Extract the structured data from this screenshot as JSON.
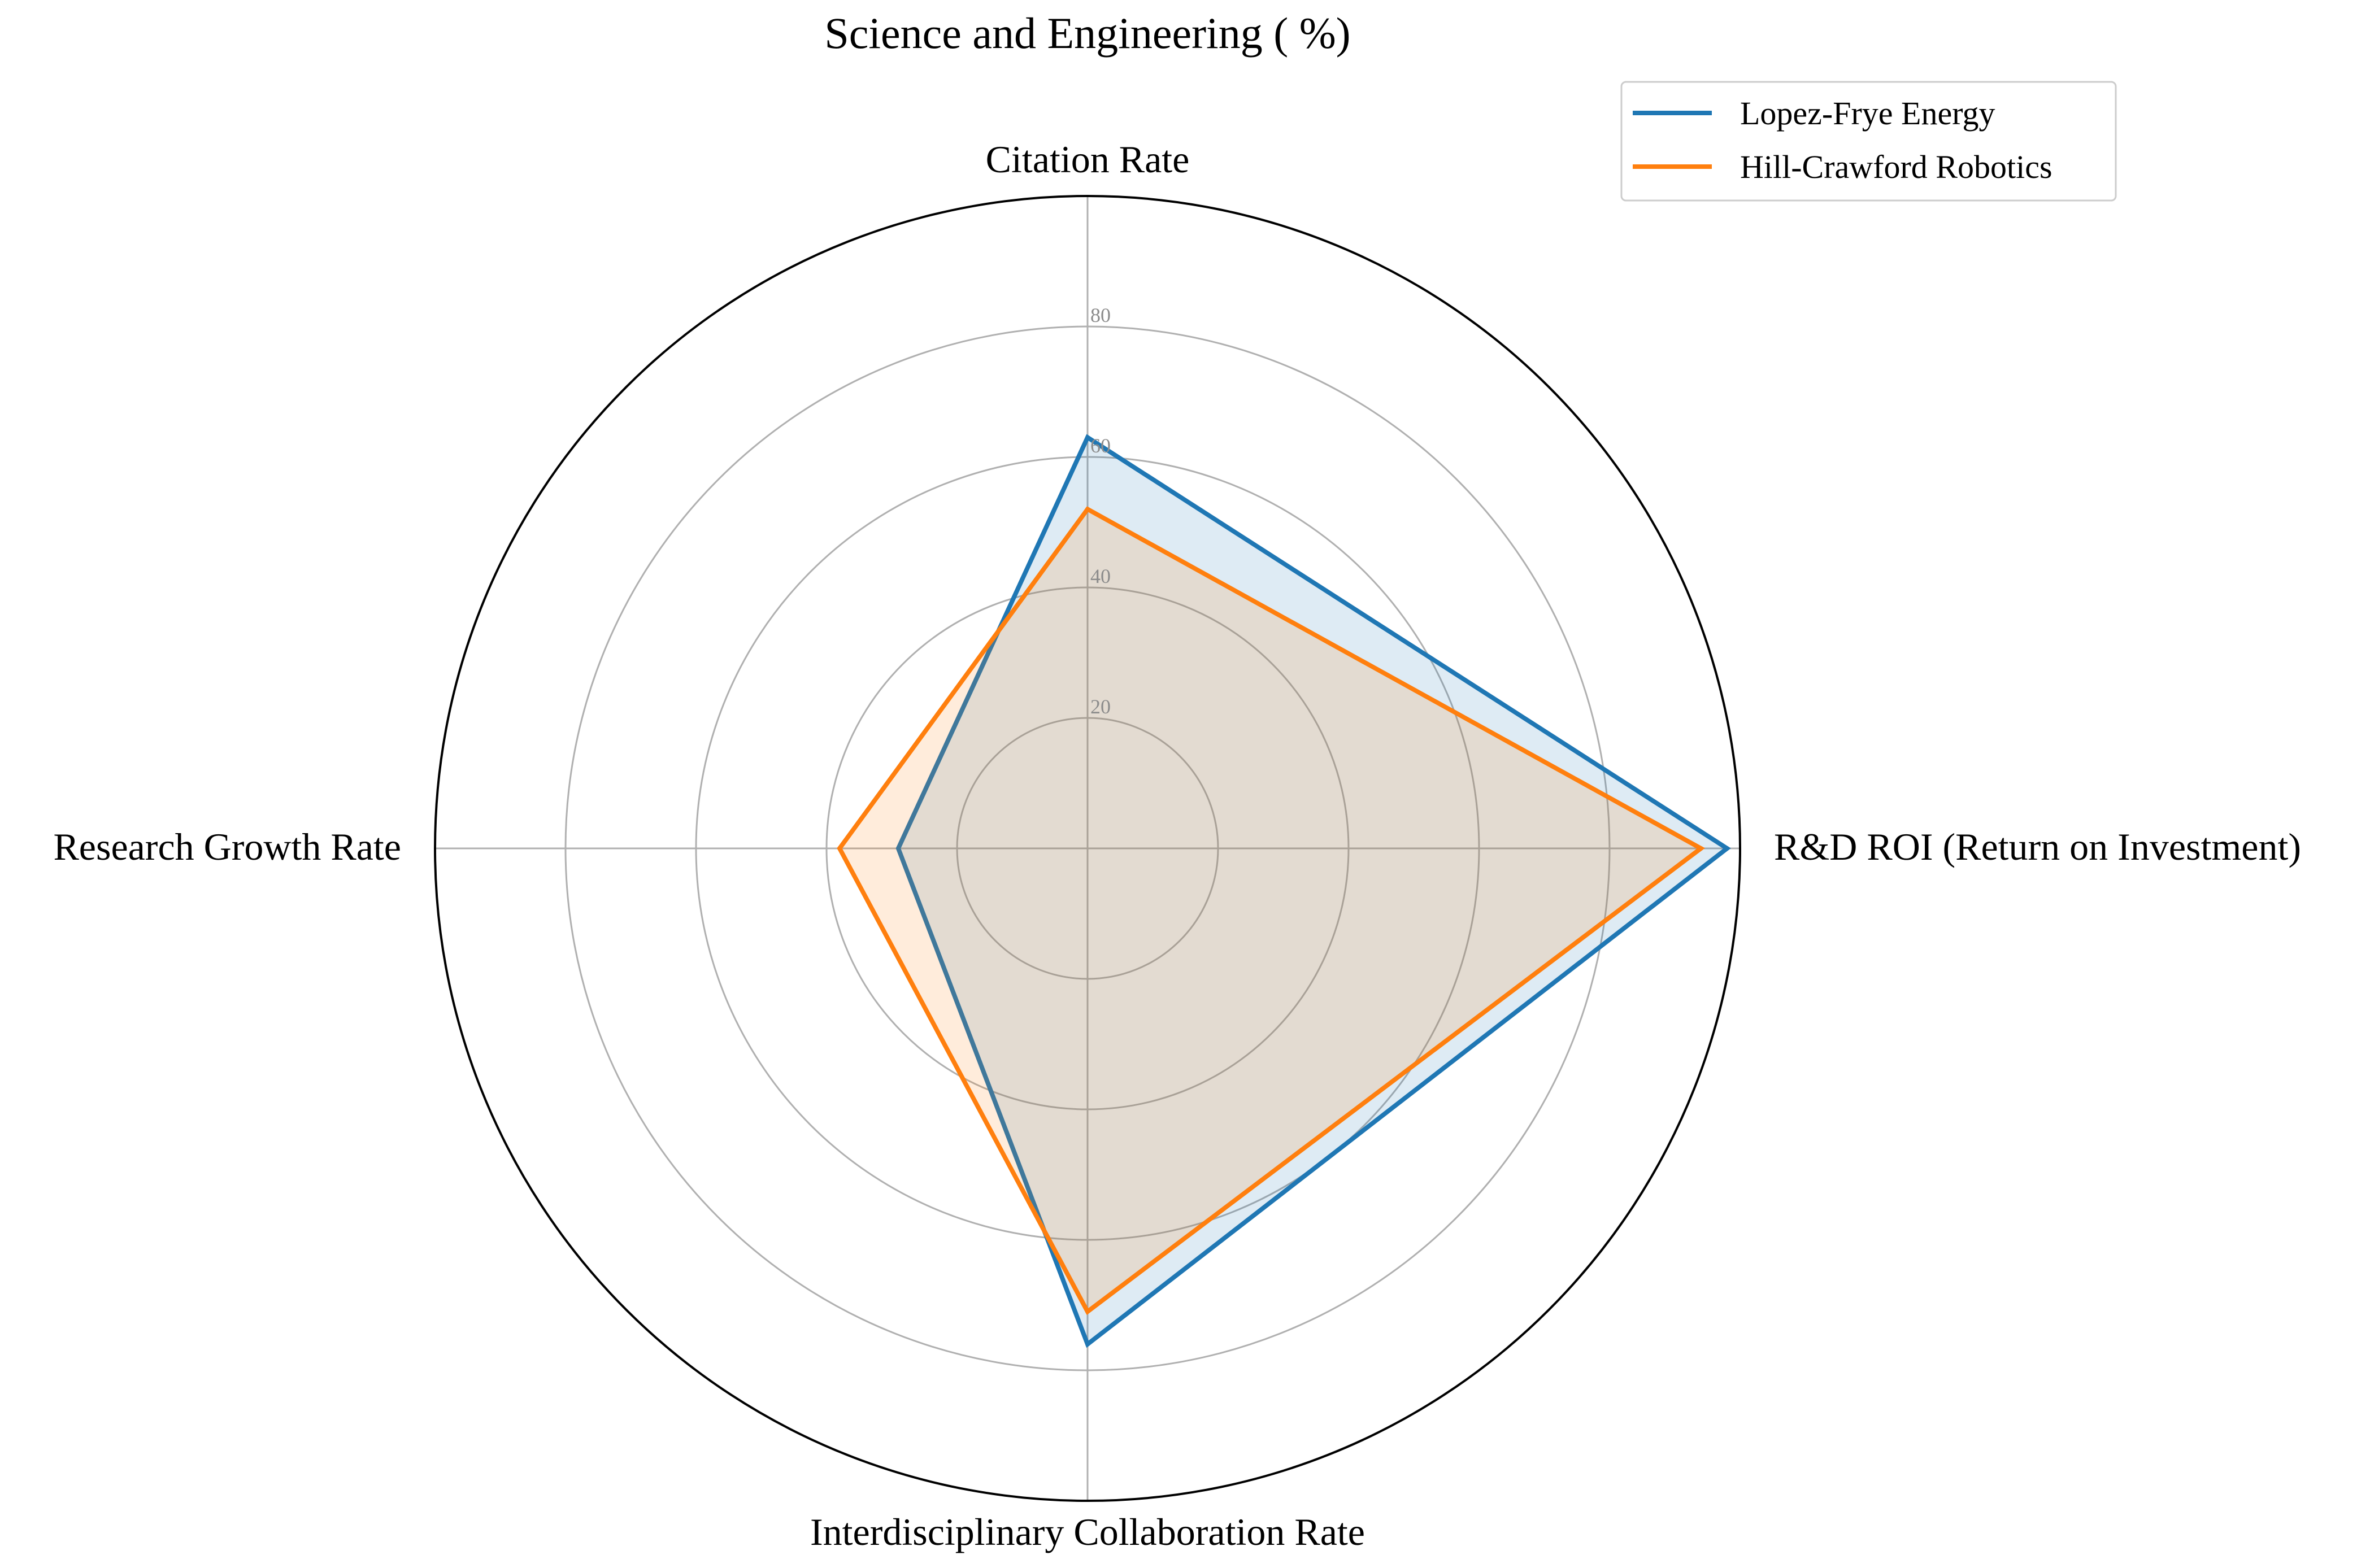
{
  "chart_data": {
    "type": "radar",
    "title": "Science and Engineering ( %)",
    "axes": [
      "Citation Rate",
      "R&D ROI (Return on Investment)",
      "Interdisciplinary Collaboration Rate",
      "Research Growth Rate"
    ],
    "rlim": [
      0,
      100
    ],
    "rticks": [
      20,
      40,
      60,
      80
    ],
    "rtick_labels": [
      "20",
      "40",
      "60",
      "80"
    ],
    "grid": true,
    "legend_position": "top-right",
    "series": [
      {
        "name": "Lopez-Frye Energy",
        "values": [
          63,
          98,
          76,
          29
        ],
        "color": "#1f77b4"
      },
      {
        "name": "Hill-Crawford Robotics",
        "values": [
          52,
          94,
          71,
          38
        ],
        "color": "#ff7f0e"
      }
    ]
  },
  "colors": {
    "grid": "#b0b0b0",
    "frame": "#000000",
    "background": "#ffffff",
    "legend_border": "#cccccc"
  }
}
